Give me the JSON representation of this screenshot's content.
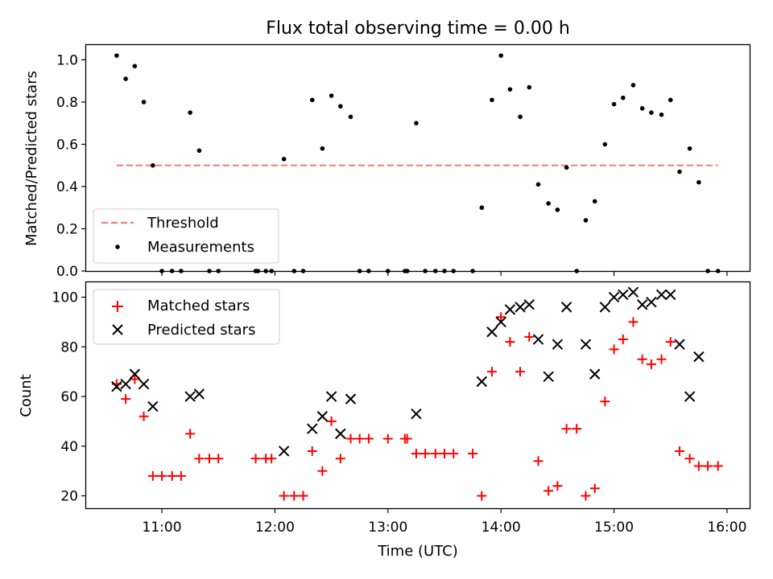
{
  "title": "Flux total observing time = 0.00 h",
  "chart_data": [
    {
      "type": "scatter",
      "ylabel": "Matched/Predicted stars",
      "xlim": [
        10.33,
        16.2
      ],
      "ylim": [
        0,
        1.07
      ],
      "yticks": [
        {
          "value": 0.0,
          "label": "0.0"
        },
        {
          "value": 0.2,
          "label": "0.2"
        },
        {
          "value": 0.4,
          "label": "0.4"
        },
        {
          "value": 0.6,
          "label": "0.6"
        },
        {
          "value": 0.8,
          "label": "0.8"
        },
        {
          "value": 1.0,
          "label": "1.0"
        }
      ],
      "legend_position": "lower-left",
      "threshold": {
        "name": "Threshold",
        "color": "#f08080",
        "x": [
          10.6,
          15.92
        ],
        "y": 0.5
      },
      "series": [
        {
          "name": "Measurements",
          "color": "#000000",
          "marker": "dot",
          "points": [
            [
              10.6,
              1.02
            ],
            [
              10.68,
              0.91
            ],
            [
              10.76,
              0.97
            ],
            [
              10.84,
              0.8
            ],
            [
              10.92,
              0.5
            ],
            [
              11.0,
              0.0
            ],
            [
              11.09,
              0.0
            ],
            [
              11.17,
              0.0
            ],
            [
              11.25,
              0.75
            ],
            [
              11.33,
              0.57
            ],
            [
              11.42,
              0.0
            ],
            [
              11.5,
              0.0
            ],
            [
              11.83,
              0.0
            ],
            [
              11.85,
              0.0
            ],
            [
              11.92,
              0.0
            ],
            [
              11.97,
              0.0
            ],
            [
              12.08,
              0.53
            ],
            [
              12.17,
              0.0
            ],
            [
              12.25,
              0.0
            ],
            [
              12.33,
              0.81
            ],
            [
              12.42,
              0.58
            ],
            [
              12.5,
              0.83
            ],
            [
              12.58,
              0.78
            ],
            [
              12.67,
              0.73
            ],
            [
              12.75,
              0.0
            ],
            [
              12.83,
              0.0
            ],
            [
              13.0,
              0.0
            ],
            [
              13.15,
              0.0
            ],
            [
              13.17,
              0.0
            ],
            [
              13.25,
              0.7
            ],
            [
              13.33,
              0.0
            ],
            [
              13.42,
              0.0
            ],
            [
              13.5,
              0.0
            ],
            [
              13.58,
              0.0
            ],
            [
              13.75,
              0.0
            ],
            [
              13.83,
              0.3
            ],
            [
              13.92,
              0.81
            ],
            [
              14.0,
              1.02
            ],
            [
              14.08,
              0.86
            ],
            [
              14.17,
              0.73
            ],
            [
              14.25,
              0.87
            ],
            [
              14.33,
              0.41
            ],
            [
              14.42,
              0.32
            ],
            [
              14.5,
              0.29
            ],
            [
              14.58,
              0.49
            ],
            [
              14.67,
              0.0
            ],
            [
              14.75,
              0.24
            ],
            [
              14.83,
              0.33
            ],
            [
              14.92,
              0.6
            ],
            [
              15.0,
              0.79
            ],
            [
              15.08,
              0.82
            ],
            [
              15.17,
              0.88
            ],
            [
              15.25,
              0.77
            ],
            [
              15.33,
              0.75
            ],
            [
              15.42,
              0.74
            ],
            [
              15.5,
              0.81
            ],
            [
              15.58,
              0.47
            ],
            [
              15.67,
              0.58
            ],
            [
              15.75,
              0.42
            ],
            [
              15.83,
              0.0
            ],
            [
              15.92,
              0.0
            ]
          ]
        }
      ]
    },
    {
      "type": "scatter",
      "xlabel": "Time (UTC)",
      "ylabel": "Count",
      "xlim": [
        10.33,
        16.2
      ],
      "ylim": [
        15,
        106
      ],
      "xticks": [
        {
          "value": 11,
          "label": "11:00"
        },
        {
          "value": 12,
          "label": "12:00"
        },
        {
          "value": 13,
          "label": "13:00"
        },
        {
          "value": 14,
          "label": "14:00"
        },
        {
          "value": 15,
          "label": "15:00"
        },
        {
          "value": 16,
          "label": "16:00"
        }
      ],
      "yticks": [
        {
          "value": 20,
          "label": "20"
        },
        {
          "value": 40,
          "label": "40"
        },
        {
          "value": 60,
          "label": "60"
        },
        {
          "value": 80,
          "label": "80"
        },
        {
          "value": 100,
          "label": "100"
        }
      ],
      "legend_position": "upper-left",
      "series": [
        {
          "name": "Matched stars",
          "color": "#ff0000",
          "marker": "plus",
          "points": [
            [
              10.6,
              65
            ],
            [
              10.68,
              59
            ],
            [
              10.76,
              67
            ],
            [
              10.84,
              52
            ],
            [
              10.92,
              28
            ],
            [
              11.0,
              28
            ],
            [
              11.09,
              28
            ],
            [
              11.17,
              28
            ],
            [
              11.25,
              45
            ],
            [
              11.33,
              35
            ],
            [
              11.42,
              35
            ],
            [
              11.5,
              35
            ],
            [
              11.83,
              35
            ],
            [
              11.92,
              35
            ],
            [
              11.97,
              35
            ],
            [
              12.08,
              20
            ],
            [
              12.17,
              20
            ],
            [
              12.25,
              20
            ],
            [
              12.33,
              38
            ],
            [
              12.42,
              30
            ],
            [
              12.5,
              50
            ],
            [
              12.58,
              35
            ],
            [
              12.67,
              43
            ],
            [
              12.75,
              43
            ],
            [
              12.83,
              43
            ],
            [
              13.0,
              43
            ],
            [
              13.15,
              43
            ],
            [
              13.17,
              43
            ],
            [
              13.25,
              37
            ],
            [
              13.33,
              37
            ],
            [
              13.42,
              37
            ],
            [
              13.5,
              37
            ],
            [
              13.58,
              37
            ],
            [
              13.75,
              37
            ],
            [
              13.83,
              20
            ],
            [
              13.92,
              70
            ],
            [
              14.0,
              92
            ],
            [
              14.08,
              82
            ],
            [
              14.17,
              70
            ],
            [
              14.25,
              84
            ],
            [
              14.33,
              34
            ],
            [
              14.42,
              22
            ],
            [
              14.5,
              24
            ],
            [
              14.58,
              47
            ],
            [
              14.67,
              47
            ],
            [
              14.75,
              20
            ],
            [
              14.83,
              23
            ],
            [
              14.92,
              58
            ],
            [
              15.0,
              79
            ],
            [
              15.08,
              83
            ],
            [
              15.17,
              90
            ],
            [
              15.25,
              75
            ],
            [
              15.33,
              73
            ],
            [
              15.42,
              75
            ],
            [
              15.5,
              82
            ],
            [
              15.58,
              38
            ],
            [
              15.67,
              35
            ],
            [
              15.75,
              32
            ],
            [
              15.83,
              32
            ],
            [
              15.92,
              32
            ]
          ]
        },
        {
          "name": "Predicted stars",
          "color": "#000000",
          "marker": "x",
          "points": [
            [
              10.6,
              64
            ],
            [
              10.68,
              65
            ],
            [
              10.76,
              69
            ],
            [
              10.84,
              65
            ],
            [
              10.92,
              56
            ],
            [
              11.25,
              60
            ],
            [
              11.33,
              61
            ],
            [
              12.08,
              38
            ],
            [
              12.33,
              47
            ],
            [
              12.42,
              52
            ],
            [
              12.5,
              60
            ],
            [
              12.58,
              45
            ],
            [
              12.67,
              59
            ],
            [
              13.25,
              53
            ],
            [
              13.83,
              66
            ],
            [
              13.92,
              86
            ],
            [
              14.0,
              90
            ],
            [
              14.08,
              95
            ],
            [
              14.17,
              96
            ],
            [
              14.25,
              97
            ],
            [
              14.33,
              83
            ],
            [
              14.42,
              68
            ],
            [
              14.5,
              81
            ],
            [
              14.58,
              96
            ],
            [
              14.75,
              81
            ],
            [
              14.83,
              69
            ],
            [
              14.92,
              96
            ],
            [
              15.0,
              100
            ],
            [
              15.08,
              101
            ],
            [
              15.17,
              102
            ],
            [
              15.25,
              97
            ],
            [
              15.33,
              98
            ],
            [
              15.42,
              101
            ],
            [
              15.5,
              101
            ],
            [
              15.58,
              81
            ],
            [
              15.67,
              60
            ],
            [
              15.75,
              76
            ]
          ]
        }
      ]
    }
  ]
}
